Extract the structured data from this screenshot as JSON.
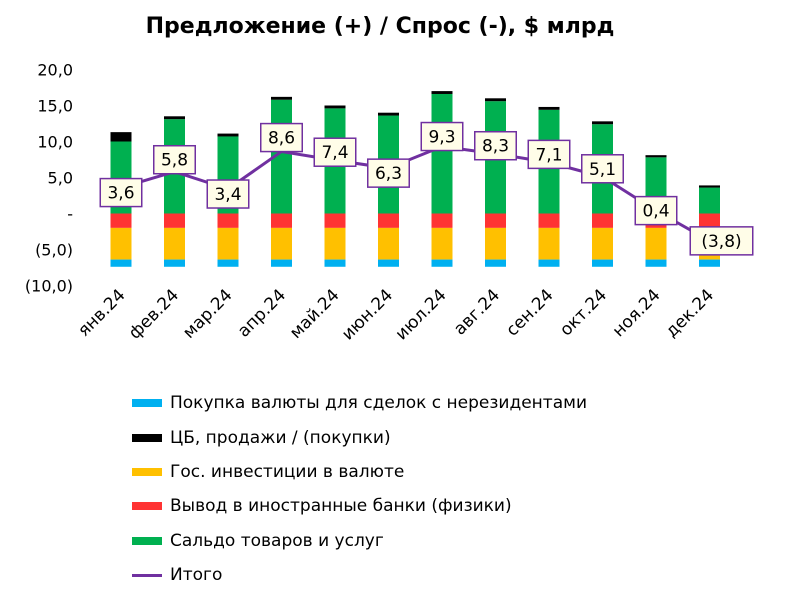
{
  "chart_data": {
    "type": "bar",
    "stacked": true,
    "title": "Предложение (+) / Спрос (-), $ млрд",
    "xlabel": "",
    "ylabel": "",
    "ylim": [
      -10,
      20
    ],
    "yticks": [
      {
        "value": 20,
        "label": "20,0"
      },
      {
        "value": 15,
        "label": "15,0"
      },
      {
        "value": 10,
        "label": "10,0"
      },
      {
        "value": 5,
        "label": "5,0"
      },
      {
        "value": 0,
        "label": "-"
      },
      {
        "value": -5,
        "label": "(5,0)"
      },
      {
        "value": -10,
        "label": "(10,0)"
      }
    ],
    "grid": false,
    "legend_position": "bottom",
    "categories": [
      "янв.24",
      "фев.24",
      "мар.24",
      "апр.24",
      "май.24",
      "июн.24",
      "июл.24",
      "авг.24",
      "сен.24",
      "окт.24",
      "ноя.24",
      "дек.24"
    ],
    "series": [
      {
        "name": "Покупка валюты для сделок с нерезидентами",
        "color": "#00b0f0",
        "values": [
          -1.0,
          -1.0,
          -1.0,
          -1.0,
          -1.0,
          -1.0,
          -1.0,
          -1.0,
          -1.0,
          -1.0,
          -1.0,
          -1.0
        ]
      },
      {
        "name": "ЦБ, продажи / (покупки)",
        "color": "#000000",
        "values": [
          1.3,
          0.4,
          0.4,
          0.4,
          0.4,
          0.4,
          0.4,
          0.4,
          0.4,
          0.4,
          0.3,
          0.3
        ]
      },
      {
        "name": "Гос. инвестиции в валюте",
        "color": "#ffc000",
        "values": [
          -4.4,
          -4.4,
          -4.4,
          -4.4,
          -4.4,
          -4.4,
          -4.4,
          -4.4,
          -4.4,
          -4.4,
          -4.4,
          -4.4
        ]
      },
      {
        "name": "Вывод в иностранные банки (физики)",
        "color": "#ff3333",
        "values": [
          -2.0,
          -2.0,
          -2.0,
          -2.0,
          -2.0,
          -2.0,
          -2.0,
          -2.0,
          -2.0,
          -2.0,
          -2.0,
          -2.0
        ]
      },
      {
        "name": "Сальдо товаров и услуг",
        "color": "#00b050",
        "values": [
          10.0,
          13.1,
          10.7,
          15.8,
          14.6,
          13.6,
          16.6,
          15.6,
          14.4,
          12.4,
          7.8,
          3.6
        ]
      },
      {
        "name": "Итого",
        "type": "line",
        "color": "#7030a0",
        "values": [
          3.6,
          5.8,
          3.4,
          8.6,
          7.4,
          6.3,
          9.3,
          8.3,
          7.1,
          5.1,
          0.4,
          -3.8
        ]
      }
    ],
    "data_labels": [
      "3,6",
      "5,8",
      "3,4",
      "8,6",
      "7,4",
      "6,3",
      "9,3",
      "8,3",
      "7,1",
      "5,1",
      "0,4",
      "(3,8)"
    ],
    "legend_order": [
      "Покупка валюты для сделок с нерезидентами",
      "ЦБ, продажи / (покупки)",
      "Гос. инвестиции в валюте",
      "Вывод в иностранные банки (физики)",
      "Сальдо товаров и услуг",
      "Итого"
    ]
  }
}
